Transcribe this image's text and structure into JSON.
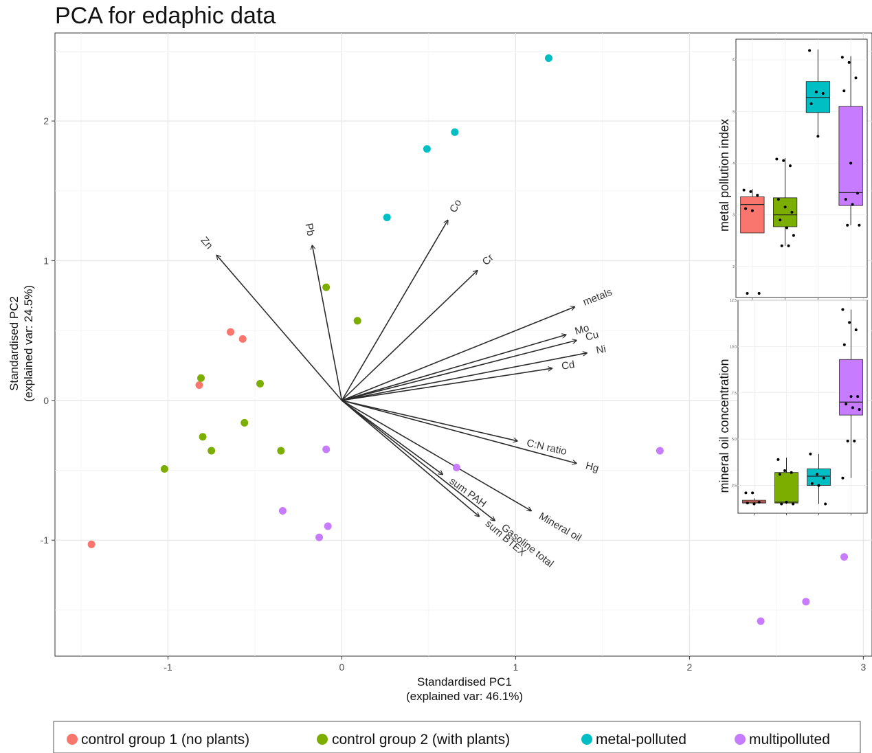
{
  "chart_data": [
    {
      "type": "scatter",
      "subtype": "pca-biplot",
      "title": "PCA for edaphic data",
      "xlabel": "Standardised PC1",
      "xlabel_sub": "(explained var: 46.1%)",
      "ylabel": "Standardised PC2",
      "ylabel_sub": "(explained var: 24.5%)",
      "xlim": [
        -1.65,
        3.05
      ],
      "ylim": [
        -1.83,
        2.63
      ],
      "x_ticks": [
        -1,
        0,
        1,
        2,
        3
      ],
      "y_ticks": [
        -1,
        0,
        1,
        2
      ],
      "x_tick_labels": [
        "-1",
        "0",
        "1",
        "2",
        "3"
      ],
      "y_tick_labels": [
        "-1",
        "0",
        "1",
        "2"
      ],
      "grid": true,
      "legend_position": "bottom",
      "series": [
        {
          "name": "control group 1 (no plants)",
          "color": "#F8766D",
          "points": [
            [
              -0.64,
              0.49
            ],
            [
              -0.57,
              0.44
            ],
            [
              -0.82,
              0.11
            ],
            [
              -1.44,
              -1.03
            ]
          ]
        },
        {
          "name": "control group 2 (with plants)",
          "color": "#7CAE00",
          "points": [
            [
              -0.09,
              0.81
            ],
            [
              0.09,
              0.57
            ],
            [
              -0.81,
              0.16
            ],
            [
              -0.47,
              0.12
            ],
            [
              -0.56,
              -0.16
            ],
            [
              -0.8,
              -0.26
            ],
            [
              -0.75,
              -0.36
            ],
            [
              -0.35,
              -0.36
            ],
            [
              -1.02,
              -0.49
            ]
          ]
        },
        {
          "name": "metal-polluted",
          "color": "#00BFC4",
          "points": [
            [
              1.19,
              2.45
            ],
            [
              0.65,
              1.92
            ],
            [
              0.49,
              1.8
            ],
            [
              0.26,
              1.31
            ]
          ]
        },
        {
          "name": "multipolluted",
          "color": "#C77CFF",
          "points": [
            [
              -0.09,
              -0.35
            ],
            [
              0.66,
              -0.48
            ],
            [
              -0.34,
              -0.79
            ],
            [
              -0.08,
              -0.9
            ],
            [
              -0.13,
              -0.98
            ],
            [
              1.83,
              -0.36
            ],
            [
              2.89,
              -1.12
            ],
            [
              2.67,
              -1.44
            ],
            [
              2.41,
              -1.58
            ]
          ]
        }
      ],
      "loadings": [
        {
          "label": "Zn",
          "x": -0.72,
          "y": 1.04
        },
        {
          "label": "Pb",
          "x": -0.17,
          "y": 1.11
        },
        {
          "label": "Co",
          "x": 0.61,
          "y": 1.29
        },
        {
          "label": "Cr",
          "x": 0.78,
          "y": 0.93
        },
        {
          "label": "metals",
          "x": 1.34,
          "y": 0.67
        },
        {
          "label": "Mo",
          "x": 1.29,
          "y": 0.47
        },
        {
          "label": "Cu",
          "x": 1.35,
          "y": 0.43
        },
        {
          "label": "Ni",
          "x": 1.41,
          "y": 0.34
        },
        {
          "label": "Cd",
          "x": 1.21,
          "y": 0.23
        },
        {
          "label": "C:N ratio",
          "x": 1.01,
          "y": -0.29
        },
        {
          "label": "Hg",
          "x": 1.35,
          "y": -0.45
        },
        {
          "label": "Mineral oil",
          "x": 1.09,
          "y": -0.79
        },
        {
          "label": "Gasoline total",
          "x": 0.88,
          "y": -0.86
        },
        {
          "label": "sum BTEX",
          "x": 0.79,
          "y": -0.83
        },
        {
          "label": "sum PAH",
          "x": 0.58,
          "y": -0.53
        }
      ]
    },
    {
      "type": "box",
      "inset": "top-right",
      "ylabel": "metal pollution index",
      "ylim": [
        1.4,
        6.4
      ],
      "y_ticks": [
        2,
        3,
        4,
        5,
        6
      ],
      "groups": [
        {
          "name": "control group 1 (no plants)",
          "color": "#F8766D",
          "q1": 2.65,
          "median": 3.2,
          "q3": 3.35,
          "lower": 2.65,
          "upper": 3.5,
          "points": [
            3.48,
            3.45,
            3.38,
            3.12,
            3.08,
            1.48,
            1.48
          ]
        },
        {
          "name": "control group 2 (with plants)",
          "color": "#7CAE00",
          "q1": 2.77,
          "median": 3.0,
          "q3": 3.33,
          "lower": 2.4,
          "upper": 4.1,
          "points": [
            4.08,
            4.05,
            3.95,
            3.3,
            3.15,
            3.05,
            2.9,
            2.75,
            2.6,
            2.4,
            2.4
          ]
        },
        {
          "name": "metal-polluted",
          "color": "#00BFC4",
          "q1": 4.98,
          "median": 5.27,
          "q3": 5.58,
          "lower": 4.52,
          "upper": 6.2,
          "points": [
            6.18,
            5.38,
            5.35,
            5.15,
            4.52
          ]
        },
        {
          "name": "multipolluted",
          "color": "#C77CFF",
          "q1": 3.18,
          "median": 3.43,
          "q3": 5.1,
          "lower": 2.8,
          "upper": 6.07,
          "points": [
            6.05,
            5.95,
            5.65,
            5.4,
            4.0,
            3.42,
            3.3,
            3.2,
            2.8,
            2.8
          ]
        }
      ]
    },
    {
      "type": "box",
      "inset": "bottom-right",
      "ylabel": "mineral oil concentration",
      "ylim": [
        1.0,
        12.5
      ],
      "y_ticks": [
        2.5,
        5.0,
        7.5,
        10.0,
        12.5
      ],
      "y_tick_labels": [
        "2.5",
        "5.0",
        "7.5",
        "10.0",
        "12.5"
      ],
      "groups": [
        {
          "name": "control group 1 (no plants)",
          "color": "#F8766D",
          "q1": 1.55,
          "median": 1.6,
          "q3": 1.7,
          "lower": 1.5,
          "upper": 1.8,
          "points": [
            2.1,
            2.1,
            1.6,
            1.55,
            1.5
          ]
        },
        {
          "name": "control group 2 (with plants)",
          "color": "#7CAE00",
          "q1": 1.55,
          "median": 1.6,
          "q3": 3.2,
          "lower": 1.5,
          "upper": 4.0,
          "points": [
            3.9,
            3.3,
            3.2,
            3.1,
            1.6,
            1.5,
            1.5
          ]
        },
        {
          "name": "metal-polluted",
          "color": "#00BFC4",
          "q1": 2.5,
          "median": 3.0,
          "q3": 3.4,
          "lower": 1.5,
          "upper": 4.2,
          "points": [
            4.2,
            3.1,
            2.9,
            2.6,
            2.5,
            1.5
          ]
        },
        {
          "name": "multipolluted",
          "color": "#C77CFF",
          "q1": 6.3,
          "median": 7.0,
          "q3": 9.3,
          "lower": 2.9,
          "upper": 12.0,
          "points": [
            12.0,
            11.3,
            10.9,
            10.1,
            7.3,
            7.3,
            6.9,
            6.7,
            6.6,
            4.9,
            4.9,
            2.9
          ]
        }
      ]
    }
  ]
}
